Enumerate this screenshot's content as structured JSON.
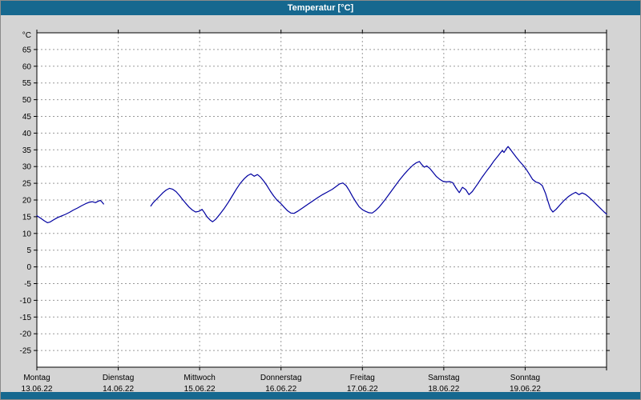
{
  "window": {
    "title": "Temperatur [°C]",
    "titlebar_color": "#16688f",
    "background_color": "#d4d4d4"
  },
  "chart_data": {
    "type": "line",
    "title": "Temperatur [°C]",
    "y_unit_label": "°C",
    "ylim": [
      -30,
      70
    ],
    "yticks": {
      "min": -25,
      "max": 65,
      "step": 5
    },
    "grid": "dashed",
    "legend": "none",
    "line_color": "#0000a0",
    "x_days": [
      {
        "name": "Montag",
        "date": "13.06.22"
      },
      {
        "name": "Dienstag",
        "date": "14.06.22"
      },
      {
        "name": "Mittwoch",
        "date": "15.06.22"
      },
      {
        "name": "Donnerstag",
        "date": "16.06.22"
      },
      {
        "name": "Freitag",
        "date": "17.06.22"
      },
      {
        "name": "Samstag",
        "date": "18.06.22"
      },
      {
        "name": "Sonntag",
        "date": "19.06.22"
      }
    ],
    "x_unit": "days_from_monday_00h",
    "series": [
      {
        "name": "Temperatur",
        "segments": [
          [
            [
              0.0,
              15.3
            ],
            [
              0.05,
              14.5
            ],
            [
              0.09,
              13.8
            ],
            [
              0.13,
              13.2
            ],
            [
              0.16,
              13.4
            ],
            [
              0.2,
              14.0
            ],
            [
              0.25,
              14.7
            ],
            [
              0.3,
              15.2
            ],
            [
              0.35,
              15.7
            ],
            [
              0.4,
              16.3
            ],
            [
              0.45,
              17.0
            ],
            [
              0.5,
              17.6
            ],
            [
              0.55,
              18.3
            ],
            [
              0.6,
              18.9
            ],
            [
              0.64,
              19.3
            ],
            [
              0.68,
              19.5
            ],
            [
              0.72,
              19.2
            ],
            [
              0.75,
              19.6
            ],
            [
              0.78,
              19.9
            ],
            [
              0.8,
              19.4
            ],
            [
              0.82,
              18.8
            ]
          ],
          [
            [
              1.4,
              18.2
            ],
            [
              1.43,
              19.2
            ],
            [
              1.47,
              20.2
            ],
            [
              1.51,
              21.2
            ],
            [
              1.55,
              22.2
            ],
            [
              1.59,
              23.0
            ],
            [
              1.63,
              23.5
            ],
            [
              1.67,
              23.2
            ],
            [
              1.71,
              22.5
            ],
            [
              1.75,
              21.4
            ],
            [
              1.79,
              20.2
            ],
            [
              1.83,
              19.0
            ],
            [
              1.87,
              17.9
            ],
            [
              1.91,
              17.0
            ],
            [
              1.95,
              16.4
            ],
            [
              1.99,
              16.6
            ],
            [
              2.03,
              17.2
            ],
            [
              2.06,
              16.2
            ],
            [
              2.09,
              15.0
            ],
            [
              2.13,
              14.0
            ],
            [
              2.16,
              13.5
            ],
            [
              2.2,
              14.3
            ],
            [
              2.25,
              15.8
            ],
            [
              2.3,
              17.4
            ],
            [
              2.35,
              19.2
            ],
            [
              2.4,
              21.2
            ],
            [
              2.45,
              23.2
            ],
            [
              2.5,
              25.0
            ],
            [
              2.55,
              26.4
            ],
            [
              2.59,
              27.3
            ],
            [
              2.63,
              27.8
            ],
            [
              2.67,
              27.1
            ],
            [
              2.71,
              27.6
            ],
            [
              2.75,
              26.8
            ],
            [
              2.79,
              25.6
            ],
            [
              2.83,
              24.2
            ],
            [
              2.87,
              22.6
            ],
            [
              2.91,
              21.2
            ],
            [
              2.95,
              20.0
            ],
            [
              3.0,
              18.9
            ],
            [
              3.04,
              17.8
            ],
            [
              3.08,
              16.8
            ],
            [
              3.12,
              16.1
            ],
            [
              3.16,
              16.0
            ],
            [
              3.21,
              16.7
            ],
            [
              3.27,
              17.7
            ],
            [
              3.33,
              18.7
            ],
            [
              3.39,
              19.7
            ],
            [
              3.45,
              20.7
            ],
            [
              3.51,
              21.6
            ],
            [
              3.57,
              22.4
            ],
            [
              3.63,
              23.2
            ],
            [
              3.68,
              24.1
            ],
            [
              3.72,
              24.8
            ],
            [
              3.76,
              25.1
            ],
            [
              3.8,
              24.3
            ],
            [
              3.84,
              22.8
            ],
            [
              3.88,
              21.0
            ],
            [
              3.92,
              19.4
            ],
            [
              3.96,
              18.0
            ],
            [
              4.0,
              17.1
            ],
            [
              4.04,
              16.6
            ],
            [
              4.08,
              16.2
            ],
            [
              4.12,
              16.1
            ],
            [
              4.16,
              16.8
            ],
            [
              4.21,
              18.0
            ],
            [
              4.27,
              19.8
            ],
            [
              4.33,
              21.8
            ],
            [
              4.39,
              23.8
            ],
            [
              4.45,
              25.8
            ],
            [
              4.51,
              27.6
            ],
            [
              4.57,
              29.2
            ],
            [
              4.62,
              30.4
            ],
            [
              4.66,
              31.1
            ],
            [
              4.7,
              31.5
            ],
            [
              4.73,
              30.6
            ],
            [
              4.76,
              29.8
            ],
            [
              4.79,
              30.2
            ],
            [
              4.83,
              29.4
            ],
            [
              4.87,
              28.2
            ],
            [
              4.91,
              27.0
            ],
            [
              4.95,
              26.2
            ],
            [
              4.99,
              25.6
            ],
            [
              5.03,
              25.4
            ],
            [
              5.07,
              25.5
            ],
            [
              5.11,
              25.2
            ],
            [
              5.15,
              23.6
            ],
            [
              5.19,
              22.2
            ],
            [
              5.23,
              23.8
            ],
            [
              5.27,
              23.1
            ],
            [
              5.31,
              21.6
            ],
            [
              5.35,
              22.5
            ],
            [
              5.41,
              24.6
            ],
            [
              5.47,
              26.8
            ],
            [
              5.53,
              28.8
            ],
            [
              5.58,
              30.4
            ],
            [
              5.62,
              31.8
            ],
            [
              5.66,
              33.0
            ],
            [
              5.69,
              33.9
            ],
            [
              5.72,
              34.8
            ],
            [
              5.74,
              34.2
            ],
            [
              5.77,
              35.4
            ],
            [
              5.79,
              36.0
            ],
            [
              5.82,
              35.1
            ],
            [
              5.85,
              34.1
            ],
            [
              5.89,
              32.8
            ],
            [
              5.93,
              31.6
            ],
            [
              5.97,
              30.5
            ],
            [
              6.01,
              29.3
            ],
            [
              6.05,
              27.8
            ],
            [
              6.09,
              26.2
            ],
            [
              6.13,
              25.4
            ],
            [
              6.17,
              25.1
            ],
            [
              6.21,
              24.3
            ],
            [
              6.25,
              22.0
            ],
            [
              6.28,
              19.6
            ],
            [
              6.31,
              17.4
            ],
            [
              6.34,
              16.4
            ],
            [
              6.38,
              17.2
            ],
            [
              6.43,
              18.6
            ],
            [
              6.48,
              19.9
            ],
            [
              6.53,
              21.0
            ],
            [
              6.58,
              21.8
            ],
            [
              6.62,
              22.3
            ],
            [
              6.66,
              21.6
            ],
            [
              6.7,
              22.1
            ],
            [
              6.74,
              21.7
            ],
            [
              6.78,
              20.9
            ],
            [
              6.83,
              19.8
            ],
            [
              6.88,
              18.6
            ],
            [
              6.93,
              17.4
            ],
            [
              6.97,
              16.4
            ],
            [
              7.0,
              15.8
            ]
          ]
        ]
      }
    ]
  }
}
